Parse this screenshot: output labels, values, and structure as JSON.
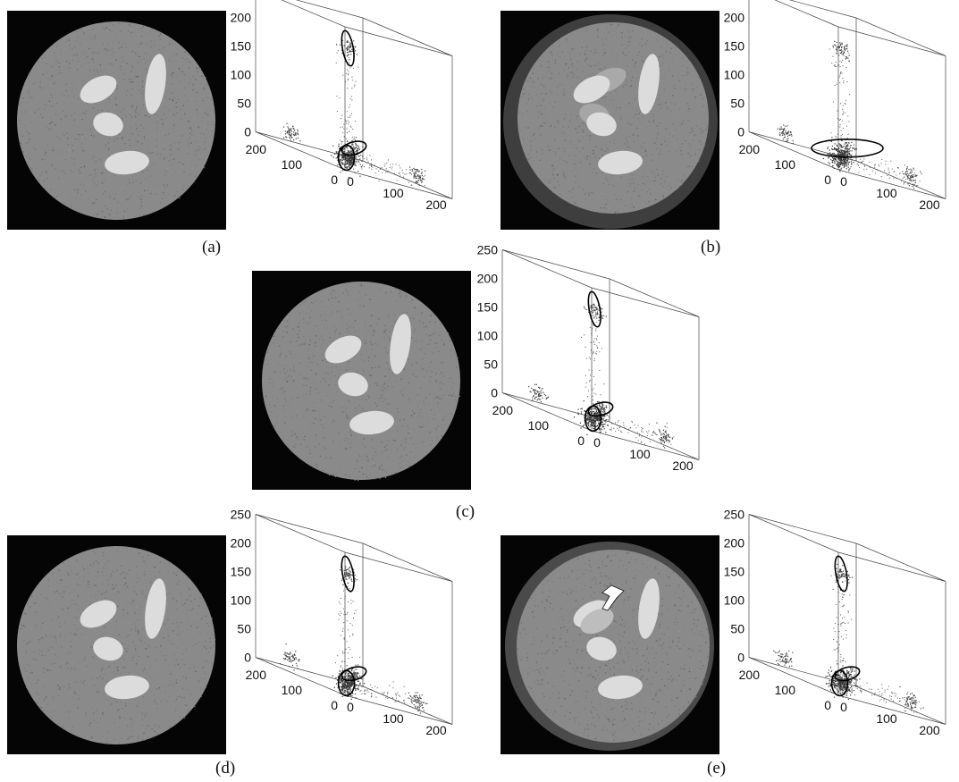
{
  "figure": {
    "panels": [
      {
        "id": "a",
        "label": "(a)",
        "variant": "basic"
      },
      {
        "id": "b",
        "label": "(b)",
        "variant": "ghost"
      },
      {
        "id": "c",
        "label": "(c)",
        "variant": "basic"
      },
      {
        "id": "d",
        "label": "(d)",
        "variant": "basic"
      },
      {
        "id": "e",
        "label": "(e)",
        "variant": "overlap"
      }
    ],
    "axis_ticks": {
      "z": [
        "0",
        "50",
        "100",
        "150",
        "200",
        "250"
      ],
      "depth": [
        "0",
        "100",
        "200"
      ],
      "x": [
        "0",
        "100",
        "200"
      ]
    }
  },
  "chart_data": [
    {
      "panel": "a",
      "type": "scatter",
      "axis_range": [
        0,
        250
      ],
      "grid": false,
      "clusters": [
        [
          20,
          20,
          20
        ],
        [
          125,
          125,
          30
        ],
        [
          200,
          40,
          20
        ],
        [
          40,
          200,
          20
        ],
        [
          40,
          40,
          210
        ]
      ]
    },
    {
      "panel": "b",
      "type": "scatter",
      "axis_range": [
        0,
        250
      ],
      "grid": false,
      "clusters": [
        [
          20,
          20,
          20
        ],
        [
          125,
          125,
          30
        ],
        [
          200,
          40,
          20
        ],
        [
          40,
          200,
          20
        ],
        [
          40,
          40,
          210
        ]
      ]
    },
    {
      "panel": "c",
      "type": "scatter",
      "axis_range": [
        0,
        250
      ],
      "grid": false,
      "clusters": [
        [
          20,
          20,
          20
        ],
        [
          125,
          125,
          30
        ],
        [
          200,
          40,
          20
        ],
        [
          40,
          200,
          20
        ],
        [
          40,
          40,
          210
        ]
      ]
    },
    {
      "panel": "d",
      "type": "scatter",
      "axis_range": [
        0,
        250
      ],
      "grid": false,
      "clusters": [
        [
          20,
          20,
          20
        ],
        [
          125,
          125,
          30
        ],
        [
          200,
          40,
          20
        ],
        [
          40,
          200,
          20
        ],
        [
          40,
          40,
          210
        ]
      ]
    },
    {
      "panel": "e",
      "type": "scatter",
      "axis_range": [
        0,
        250
      ],
      "grid": false,
      "clusters": [
        [
          20,
          20,
          20
        ],
        [
          125,
          125,
          30
        ],
        [
          200,
          40,
          20
        ],
        [
          40,
          200,
          20
        ],
        [
          40,
          40,
          210
        ]
      ]
    }
  ]
}
